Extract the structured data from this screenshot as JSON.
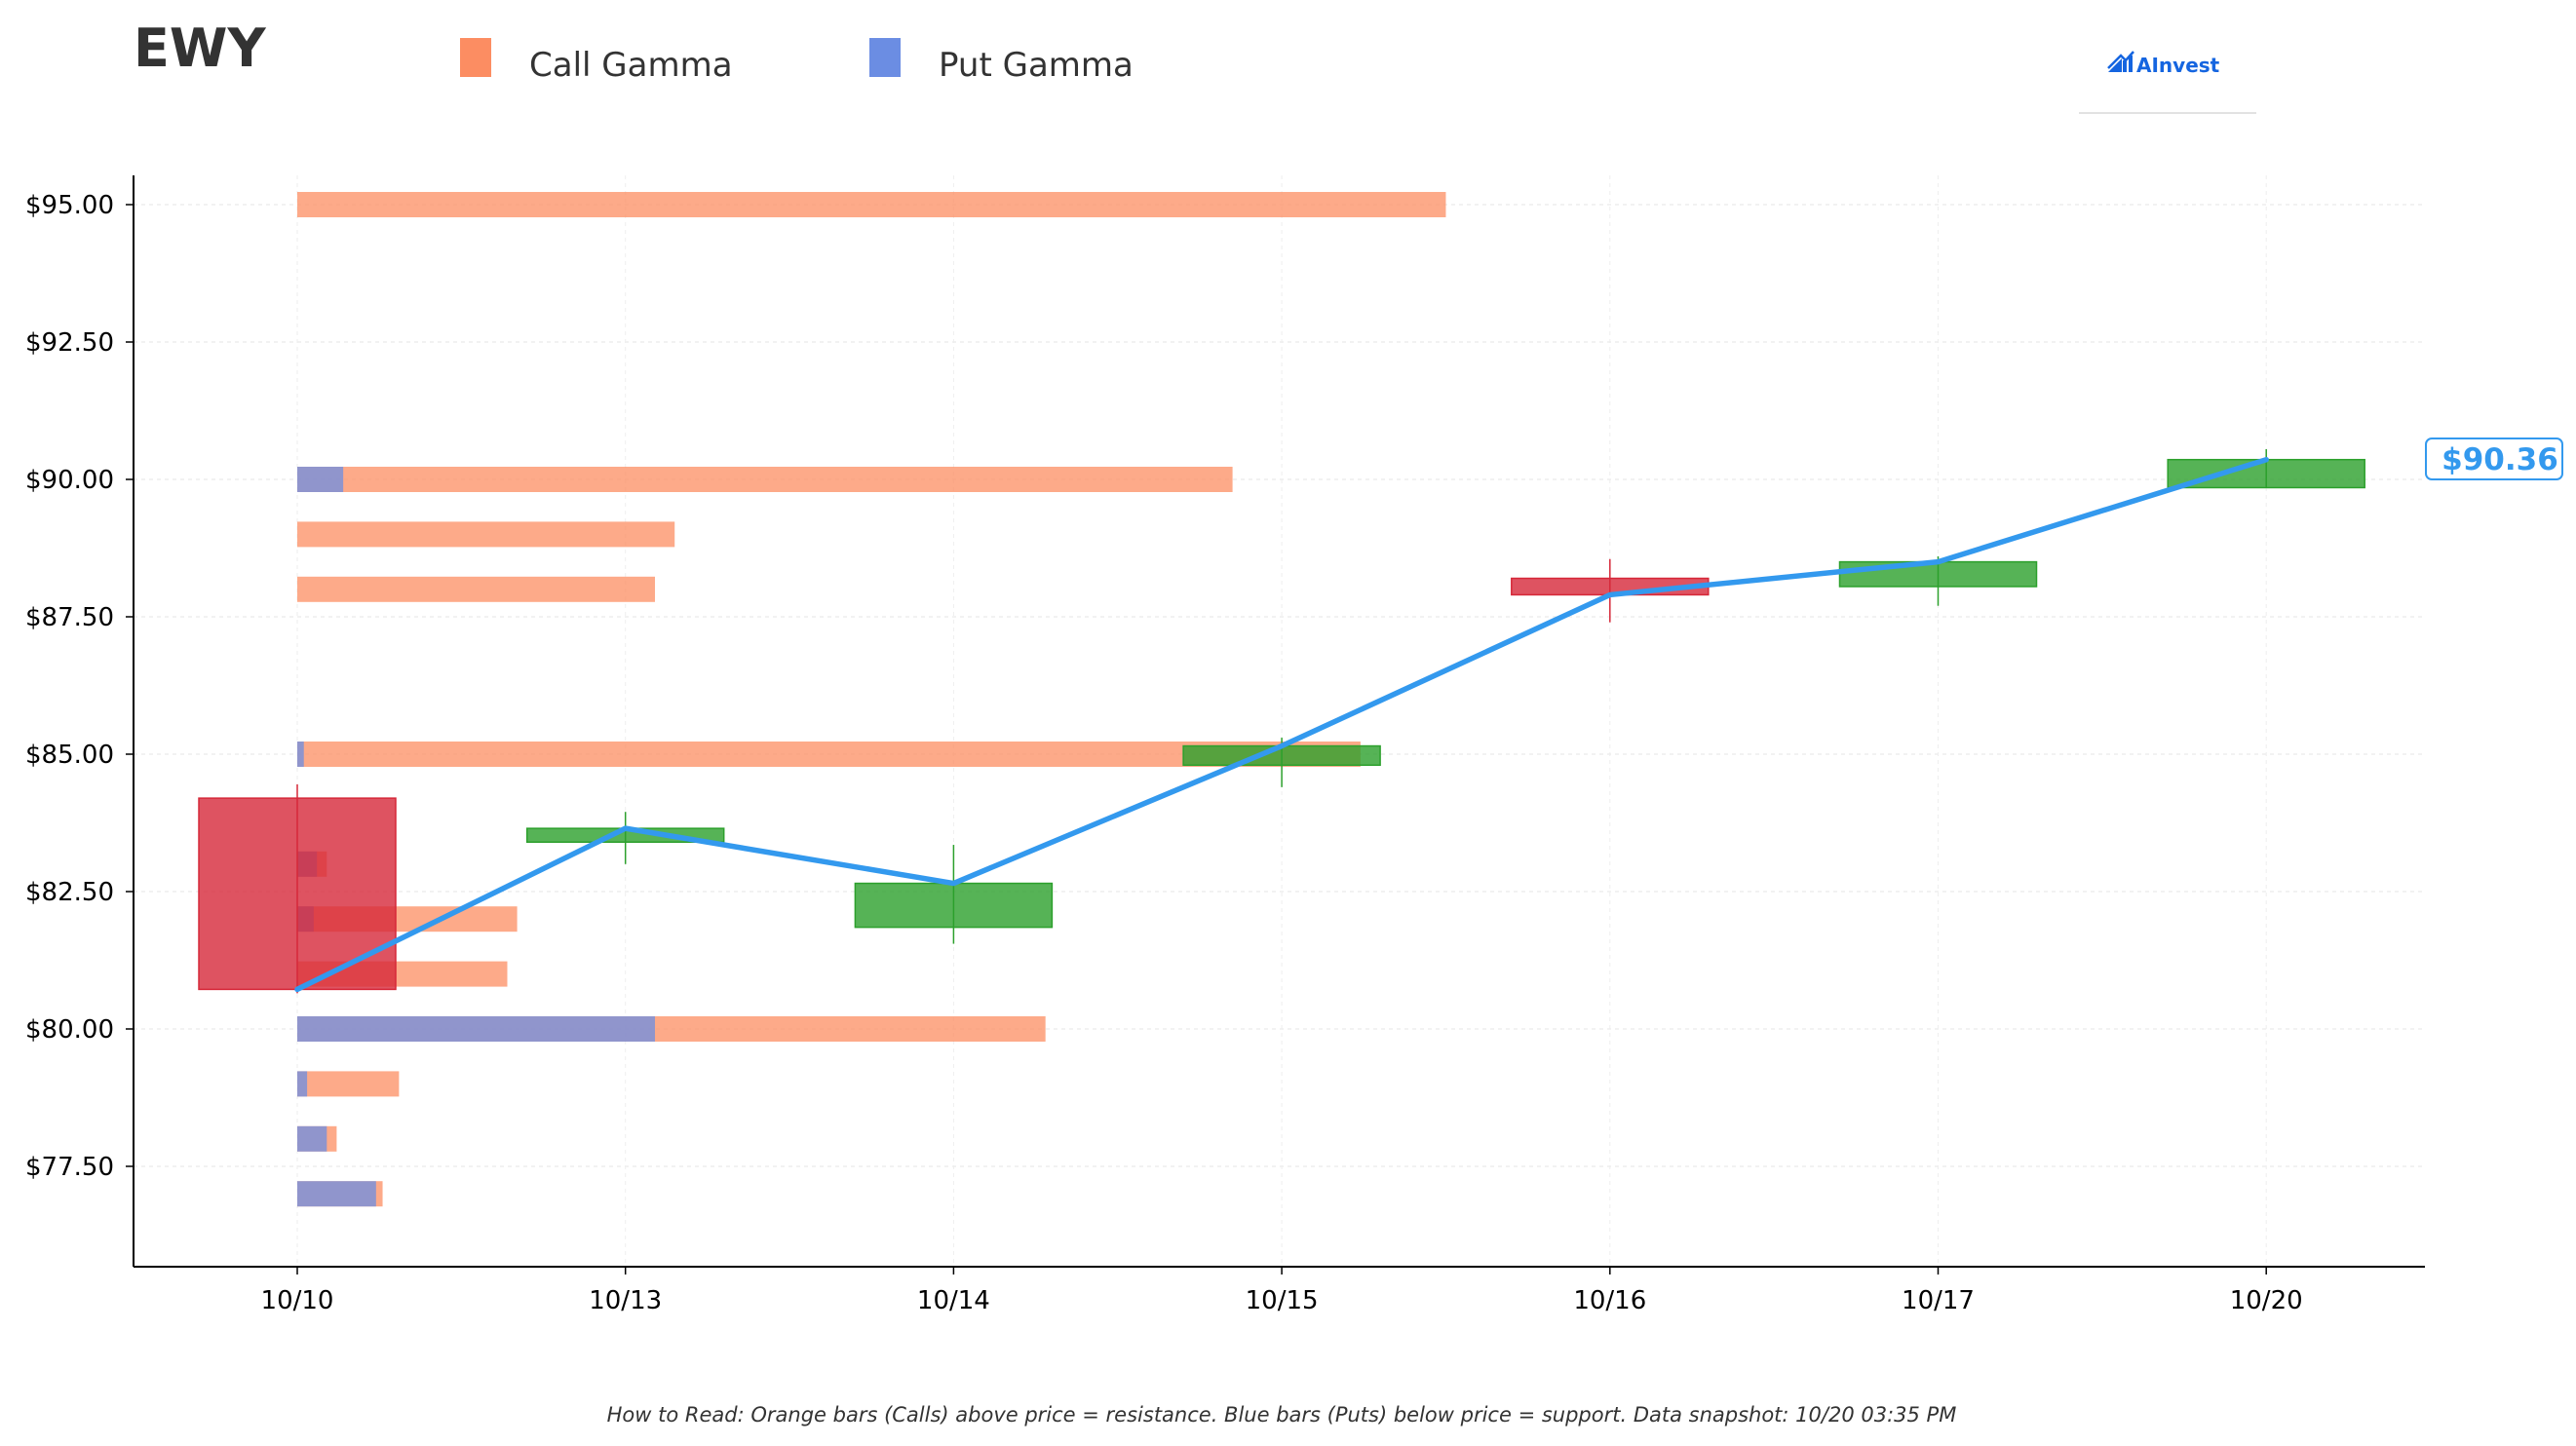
{
  "ticker": "EWY",
  "legend": {
    "call_label": "Call Gamma",
    "put_label": "Put Gamma"
  },
  "logo": {
    "text": "AInvest"
  },
  "colors": {
    "call": "#fc8d62",
    "put": "#6b8de3",
    "up": "#2ca02c",
    "down": "#d62839",
    "price_line": "#3399ee",
    "axis": "#000000"
  },
  "current_price_label": "$90.36",
  "footnote": "How to Read: Orange bars (Calls) above price = resistance. Blue bars (Puts) below price = support. Data snapshot: 10/20 03:35 PM",
  "chart_data": {
    "type": "bar",
    "x_categories": [
      "10/10",
      "10/13",
      "10/14",
      "10/15",
      "10/16",
      "10/17",
      "10/20"
    ],
    "y_tick_values": [
      77.5,
      80,
      82.5,
      85,
      87.5,
      90,
      92.5,
      95
    ],
    "y_tick_labels": [
      "$77.50",
      "$80.00",
      "$82.50",
      "$85.00",
      "$87.50",
      "$90.00",
      "$92.50",
      "$95.00"
    ],
    "ylim": [
      75.8,
      95.5
    ],
    "grid": true,
    "legend_position": "top-left",
    "gamma_bars": {
      "unit": "relative gamma exposure (x-axis day widths from 10/10)",
      "call_series_name": "Call Gamma",
      "put_series_name": "Put Gamma",
      "levels": [
        {
          "strike": 95.0,
          "call": 3.5,
          "put": 0
        },
        {
          "strike": 90.0,
          "call": 2.85,
          "put": 0.14
        },
        {
          "strike": 89.0,
          "call": 1.15,
          "put": 0
        },
        {
          "strike": 88.0,
          "call": 1.09,
          "put": 0
        },
        {
          "strike": 85.0,
          "call": 3.24,
          "put": 0.02
        },
        {
          "strike": 83.0,
          "call": 0.09,
          "put": 0.06
        },
        {
          "strike": 82.0,
          "call": 0.67,
          "put": 0.05
        },
        {
          "strike": 81.0,
          "call": 0.64,
          "put": 0
        },
        {
          "strike": 80.0,
          "call": 2.28,
          "put": 1.09
        },
        {
          "strike": 79.0,
          "call": 0.31,
          "put": 0.03
        },
        {
          "strike": 78.0,
          "call": 0.12,
          "put": 0.09
        },
        {
          "strike": 77.0,
          "call": 0.26,
          "put": 0.24
        }
      ]
    },
    "candles": [
      {
        "date": "10/10",
        "open": 84.2,
        "high": 84.45,
        "low": 80.65,
        "close": 80.72
      },
      {
        "date": "10/13",
        "open": 83.4,
        "high": 83.95,
        "low": 83.0,
        "close": 83.65
      },
      {
        "date": "10/14",
        "open": 81.85,
        "high": 83.35,
        "low": 81.55,
        "close": 82.65
      },
      {
        "date": "10/15",
        "open": 84.8,
        "high": 85.3,
        "low": 84.4,
        "close": 85.15
      },
      {
        "date": "10/16",
        "open": 88.2,
        "high": 88.55,
        "low": 87.4,
        "close": 87.9
      },
      {
        "date": "10/17",
        "open": 88.05,
        "high": 88.6,
        "low": 87.7,
        "close": 88.5
      },
      {
        "date": "10/20",
        "open": 89.85,
        "high": 90.55,
        "low": 89.85,
        "close": 90.36
      }
    ],
    "price_line": {
      "x": [
        "10/10",
        "10/13",
        "10/14",
        "10/15",
        "10/16",
        "10/17",
        "10/20"
      ],
      "y": [
        80.72,
        83.65,
        82.65,
        85.15,
        87.9,
        88.5,
        90.36
      ]
    }
  }
}
